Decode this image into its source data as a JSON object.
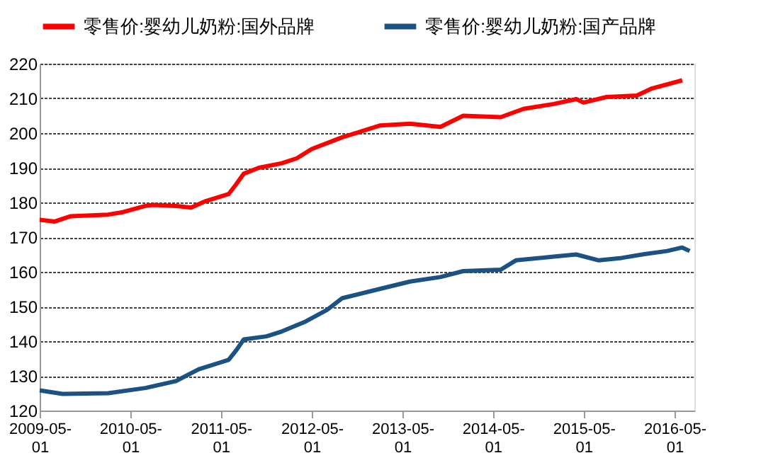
{
  "chart_data": {
    "type": "line",
    "series": [
      {
        "name": "零售价:婴幼儿奶粉:国外品牌",
        "color": "#ff0000",
        "x": [
          "2009-05-01",
          "2009-07-01",
          "2009-09-01",
          "2010-02-01",
          "2010-04-01",
          "2010-07-01",
          "2010-08-01",
          "2010-11-01",
          "2011-01-01",
          "2011-03-01",
          "2011-06-01",
          "2011-07-01",
          "2011-08-01",
          "2011-10-01",
          "2012-01-01",
          "2012-03-01",
          "2012-05-01",
          "2012-09-01",
          "2013-02-01",
          "2013-06-01",
          "2013-10-01",
          "2014-01-01",
          "2014-06-01",
          "2014-09-01",
          "2015-01-01",
          "2015-04-01",
          "2015-05-01",
          "2015-08-01",
          "2015-12-01",
          "2016-02-01",
          "2016-06-01"
        ],
        "values": [
          175,
          174.5,
          176,
          176.5,
          177.2,
          179,
          179.3,
          179,
          178.5,
          180.4,
          182.4,
          185.2,
          188.3,
          190,
          191.3,
          192.7,
          195.4,
          198.8,
          202.2,
          202.7,
          201.8,
          205,
          204.6,
          207,
          208.4,
          209.8,
          208.8,
          210.4,
          210.8,
          212.9,
          215.2
        ]
      },
      {
        "name": "零售价:婴幼儿奶粉:国产品牌",
        "color": "#1b5283",
        "x": [
          "2009-05-01",
          "2009-08-01",
          "2010-02-01",
          "2010-07-01",
          "2010-11-01",
          "2011-02-01",
          "2011-06-01",
          "2011-07-01",
          "2011-08-01",
          "2011-11-01",
          "2012-01-01",
          "2012-04-01",
          "2012-07-01",
          "2012-09-01",
          "2013-02-01",
          "2013-06-01",
          "2013-10-01",
          "2014-01-01",
          "2014-06-01",
          "2014-08-01",
          "2015-01-01",
          "2015-04-01",
          "2015-07-01",
          "2015-10-01",
          "2016-01-01",
          "2016-04-01",
          "2016-06-01",
          "2016-07-01"
        ],
        "values": [
          125.8,
          124.8,
          125,
          126.5,
          128.5,
          131.9,
          134.6,
          137.3,
          140.5,
          141.4,
          142.8,
          145.5,
          149,
          152.4,
          155.1,
          157.2,
          158.5,
          160.2,
          160.6,
          163.3,
          164.4,
          165,
          163.3,
          164,
          165.1,
          166,
          167,
          166
        ]
      }
    ],
    "xlim": [
      "2009-05-01",
      "2016-07-20"
    ],
    "xticks": [
      "2009-05-01",
      "2010-05-01",
      "2011-05-01",
      "2012-05-01",
      "2013-05-01",
      "2014-05-01",
      "2015-05-01",
      "2016-05-01"
    ],
    "ylim": [
      120,
      220
    ],
    "yticks": [
      120,
      130,
      140,
      150,
      160,
      170,
      180,
      190,
      200,
      210,
      220
    ],
    "grid": "y",
    "legend": "top",
    "line_style": "solid",
    "marker": "none"
  }
}
